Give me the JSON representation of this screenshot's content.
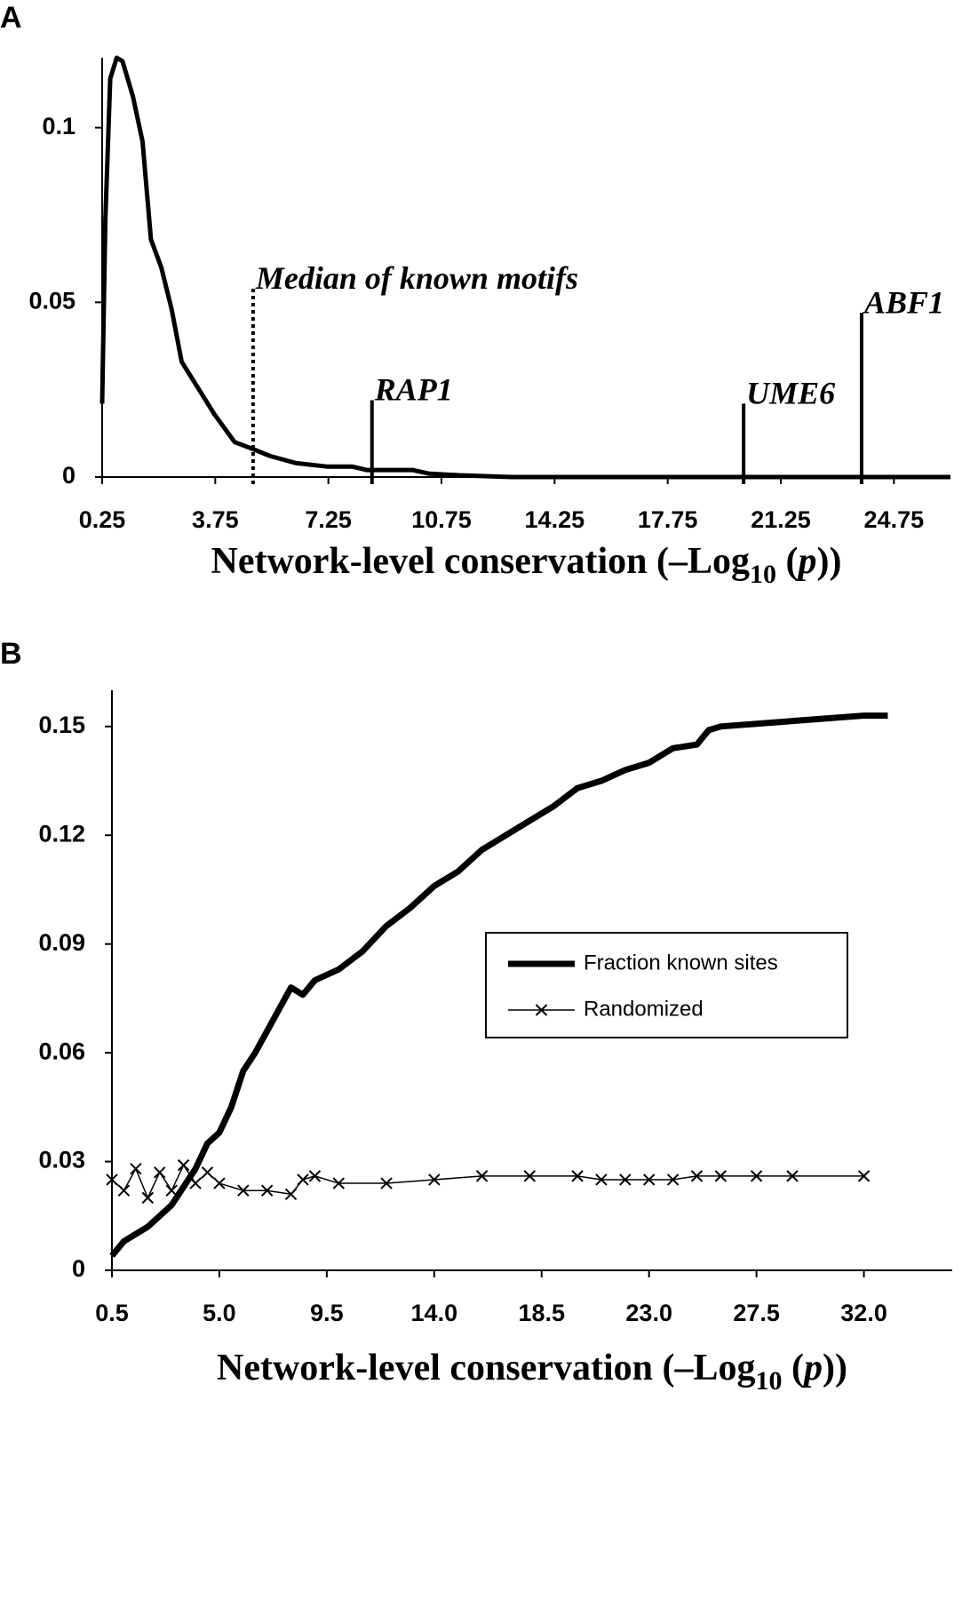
{
  "chart_data": [
    {
      "type": "line",
      "label": "A",
      "xlabel": [
        "Network-level conservation (–Log",
        "10",
        " (",
        "p",
        "))"
      ],
      "x": [
        0.25,
        0.35,
        0.5,
        0.7,
        0.88,
        1.2,
        1.5,
        1.76,
        2.08,
        2.4,
        2.71,
        3.25,
        3.72,
        4.35,
        4.92,
        5.45,
        6.24,
        7.2,
        7.98,
        8.45,
        9.24,
        9.87,
        10.35,
        11.3,
        12.9,
        26.5
      ],
      "values": [
        0.021,
        0.074,
        0.114,
        0.12,
        0.119,
        0.109,
        0.096,
        0.068,
        0.06,
        0.048,
        0.033,
        0.025,
        0.018,
        0.01,
        0.008,
        0.006,
        0.004,
        0.003,
        0.003,
        0.002,
        0.002,
        0.002,
        0.001,
        0.0005,
        0,
        0
      ],
      "color": "#000000",
      "xlim": [
        0.25,
        26.5
      ],
      "ylim": [
        0,
        0.12
      ],
      "xticks": [
        0.25,
        3.75,
        7.25,
        10.75,
        14.25,
        17.75,
        21.25,
        24.75
      ],
      "yticks": [
        0,
        0.05,
        0.1
      ],
      "annotations": [
        {
          "text": "Median of known motifs",
          "x": 4.92,
          "y": 0.054,
          "dashed": true
        },
        {
          "text": "RAP1",
          "x": 8.6,
          "y": 0.022
        },
        {
          "text": "UME6",
          "x": 20.1,
          "y": 0.021
        },
        {
          "text": "ABF1",
          "x": 23.75,
          "y": 0.047
        }
      ]
    },
    {
      "type": "line",
      "label": "B",
      "xlabel": [
        "Network-level conservation (–Log",
        "10",
        " (",
        "p",
        "))"
      ],
      "xlim": [
        0.5,
        35.7
      ],
      "ylim": [
        0,
        0.16
      ],
      "xticks": [
        0.5,
        {
          "value": 5,
          "label": "5.0"
        },
        9.5,
        {
          "value": 14,
          "label": "14.0"
        },
        18.5,
        {
          "value": 23,
          "label": "23.0"
        },
        27.5,
        {
          "value": 32,
          "label": "32.0"
        }
      ],
      "yticks": [
        0,
        0.03,
        0.06,
        0.09,
        0.12,
        0.15
      ],
      "legend": "right",
      "series": [
        {
          "name": "Fraction known sites",
          "color": "#000000",
          "marker": "none",
          "x": [
            0.5,
            1,
            2,
            3,
            4,
            4.5,
            5,
            5.5,
            6,
            6.5,
            7,
            7.5,
            8,
            8.5,
            9,
            10,
            11,
            12,
            13,
            14,
            15,
            16,
            17,
            18,
            19,
            20,
            21,
            22,
            23,
            24,
            25,
            25.5,
            26,
            28,
            30,
            32,
            33
          ],
          "values": [
            0.004,
            0.008,
            0.012,
            0.018,
            0.028,
            0.035,
            0.038,
            0.045,
            0.055,
            0.06,
            0.066,
            0.072,
            0.078,
            0.076,
            0.08,
            0.083,
            0.088,
            0.095,
            0.1,
            0.106,
            0.11,
            0.116,
            0.12,
            0.124,
            0.128,
            0.133,
            0.135,
            0.138,
            0.14,
            0.144,
            0.145,
            0.149,
            0.15,
            0.151,
            0.152,
            0.153,
            0.153
          ]
        },
        {
          "name": "Randomized",
          "color": "#000000",
          "marker": "x",
          "x": [
            0.5,
            1,
            1.5,
            2,
            2.5,
            3,
            3.5,
            4,
            4.5,
            5,
            6,
            7,
            8,
            8.5,
            9,
            10,
            12,
            14,
            16,
            18,
            20,
            21,
            22,
            23,
            24,
            25,
            26,
            27.5,
            29,
            32
          ],
          "values": [
            0.025,
            0.022,
            0.028,
            0.02,
            0.027,
            0.022,
            0.029,
            0.024,
            0.027,
            0.024,
            0.022,
            0.022,
            0.021,
            0.025,
            0.026,
            0.024,
            0.024,
            0.025,
            0.026,
            0.026,
            0.026,
            0.025,
            0.025,
            0.025,
            0.025,
            0.026,
            0.026,
            0.026,
            0.026,
            0.026
          ]
        }
      ]
    }
  ]
}
